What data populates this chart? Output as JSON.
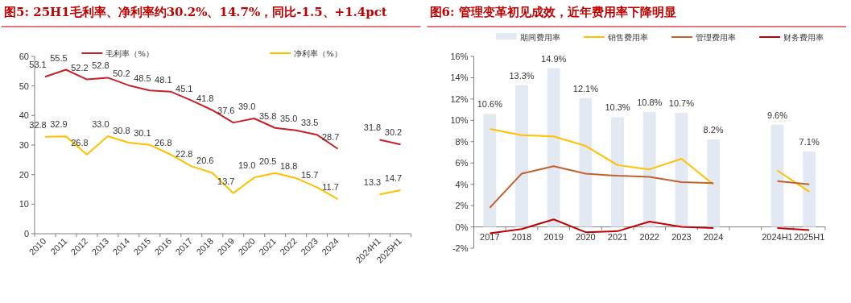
{
  "chart_data": [
    {
      "type": "line",
      "title": "图5:  25H1毛利率、净利率约30.2%、14.7%，同比-1.5、+1.4pct",
      "categories": [
        "2010",
        "2011",
        "2012",
        "2013",
        "2014",
        "2015",
        "2016",
        "2017",
        "2018",
        "2019",
        "2020",
        "2021",
        "2022",
        "2023",
        "2024",
        null,
        "2024H1",
        "2025H1"
      ],
      "series": [
        {
          "name": "毛利率（%）",
          "color": "#c8202a",
          "values": [
            53.1,
            55.5,
            52.2,
            52.8,
            50.2,
            48.5,
            48.1,
            45.1,
            41.8,
            37.6,
            39.0,
            35.8,
            35.0,
            33.5,
            28.7,
            null,
            31.8,
            30.2
          ],
          "value_labels": [
            "53.1",
            "55.5",
            "52.2",
            "52.8",
            "50.2",
            "48.5",
            "48.1",
            "45.1",
            "41.8",
            "37.6",
            "39.0",
            "35.8",
            "35.0",
            "33.5",
            "28.7",
            null,
            "31.8",
            "30.2"
          ]
        },
        {
          "name": "净利率（%）",
          "color": "#ffc000",
          "values": [
            32.8,
            32.9,
            26.8,
            33.0,
            30.8,
            30.1,
            26.8,
            22.8,
            20.6,
            13.7,
            19.0,
            20.5,
            18.8,
            15.7,
            11.7,
            null,
            13.3,
            14.7
          ],
          "value_labels": [
            "32.8",
            "32.9",
            "26.8",
            "33.0",
            "30.8",
            "30.1",
            "26.8",
            "22.8",
            "20.6",
            "13.7",
            "19.0",
            "20.5",
            "18.8",
            "15.7",
            "11.7",
            null,
            "13.3",
            "14.7"
          ]
        }
      ],
      "ylim": [
        0,
        60
      ],
      "yticks": [
        0,
        10,
        20,
        30,
        40,
        50,
        60
      ],
      "legend": "top"
    },
    {
      "type": "bar",
      "title": "图6:   管理变革初见成效，近年费用率下降明显",
      "categories": [
        "2017",
        "2018",
        "2019",
        "2020",
        "2021",
        "2022",
        "2023",
        "2024",
        null,
        "2024H1",
        "2025H1"
      ],
      "series": [
        {
          "name": "期间费用率",
          "color": "#e3e9f2",
          "values": [
            10.6,
            13.3,
            14.9,
            12.1,
            10.3,
            10.8,
            10.7,
            8.2,
            null,
            9.6,
            7.1
          ],
          "value_labels": [
            "10.6%",
            "13.3%",
            "14.9%",
            "12.1%",
            "10.3%",
            "10.8%",
            "10.7%",
            "8.2%",
            null,
            "9.6%",
            "7.1%"
          ]
        },
        {
          "name": "销售费用率",
          "type": "line",
          "color": "#ffc000",
          "values": [
            9.2,
            8.6,
            8.5,
            7.6,
            5.8,
            5.4,
            6.4,
            4.0,
            null,
            5.3,
            3.3
          ]
        },
        {
          "name": "管理费用率",
          "type": "line",
          "color": "#c0622d",
          "values": [
            1.8,
            5.0,
            5.7,
            5.0,
            4.8,
            4.7,
            4.2,
            4.1,
            null,
            4.3,
            4.0
          ]
        },
        {
          "name": "财务费用率",
          "type": "line",
          "color": "#c00000",
          "values": [
            -0.6,
            -0.2,
            0.7,
            -0.5,
            -0.4,
            0.5,
            0.0,
            -0.1,
            null,
            -0.1,
            -0.3
          ]
        }
      ],
      "ylim": [
        -2,
        16
      ],
      "yticks": [
        {
          "value": -2,
          "label": "-2%"
        },
        {
          "value": 0,
          "label": "0%"
        },
        {
          "value": 2,
          "label": "2%"
        },
        {
          "value": 4,
          "label": "4%"
        },
        {
          "value": 6,
          "label": "6%"
        },
        {
          "value": 8,
          "label": "8%"
        },
        {
          "value": 10,
          "label": "10%"
        },
        {
          "value": 12,
          "label": "12%"
        },
        {
          "value": 14,
          "label": "14%"
        },
        {
          "value": 16,
          "label": "16%"
        }
      ],
      "legend": "top"
    }
  ]
}
